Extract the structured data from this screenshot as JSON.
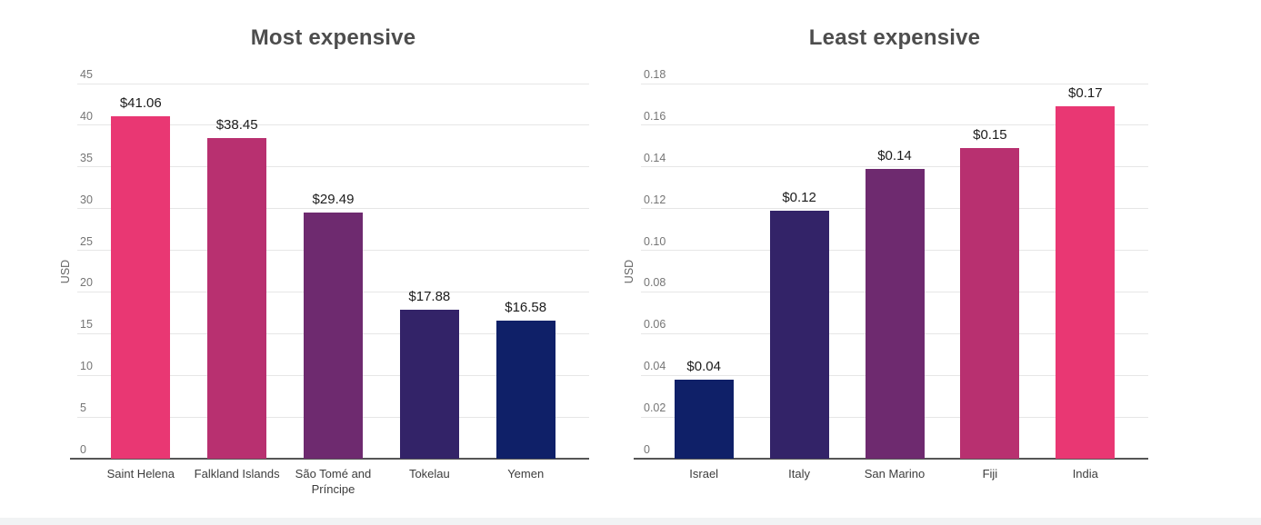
{
  "page": {
    "background": "#ffffff"
  },
  "style": {
    "grid_color": "#e6e6e6",
    "axis_line_color": "#555555",
    "tick_color": "#757575",
    "title_color": "#4d4d4d",
    "value_label_color": "#1c1c1c",
    "category_color": "#3d3d3d",
    "y_axis_title_color": "#666666"
  },
  "chart_data": [
    {
      "type": "bar",
      "title": "Most expensive",
      "ylabel": "USD",
      "xlabel": "",
      "ylim": [
        0,
        45
      ],
      "grid": true,
      "legend": false,
      "yticks": [
        "0",
        "5",
        "10",
        "15",
        "20",
        "25",
        "30",
        "35",
        "40",
        "45"
      ],
      "categories": [
        "Saint Helena",
        "Falkland Islands",
        "São Tomé and Príncipe",
        "Tokelau",
        "Yemen"
      ],
      "values": [
        41.06,
        38.45,
        29.49,
        17.88,
        16.58
      ],
      "labels": [
        "$41.06",
        "$38.45",
        "$29.49",
        "$17.88",
        "$16.58"
      ],
      "bar_colors": [
        "#e93773",
        "#b83070",
        "#6e2a6f",
        "#332368",
        "#0f2068"
      ]
    },
    {
      "type": "bar",
      "title": "Least expensive",
      "ylabel": "USD",
      "xlabel": "",
      "ylim": [
        0,
        0.18
      ],
      "grid": true,
      "legend": false,
      "yticks": [
        "0",
        "0.02",
        "0.04",
        "0.06",
        "0.08",
        "0.10",
        "0.12",
        "0.14",
        "0.16",
        "0.18"
      ],
      "categories": [
        "Israel",
        "Italy",
        "San Marino",
        "Fiji",
        "India"
      ],
      "values": [
        0.038,
        0.119,
        0.139,
        0.149,
        0.169
      ],
      "labels": [
        "$0.04",
        "$0.12",
        "$0.14",
        "$0.15",
        "$0.17"
      ],
      "bar_colors": [
        "#0f2068",
        "#332368",
        "#6e2a6f",
        "#b83070",
        "#e93773"
      ]
    }
  ]
}
